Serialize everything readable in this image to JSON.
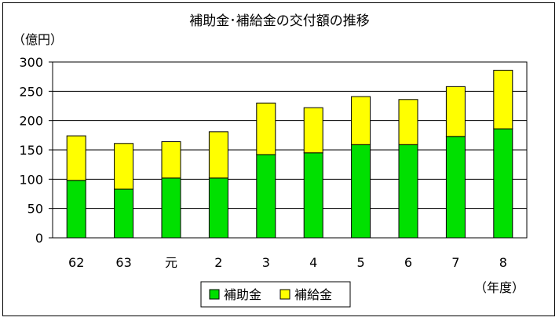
{
  "chart_data": {
    "type": "bar",
    "stacked": true,
    "title": "補助金･補給金の交付額の推移",
    "ylabel": "（億円）",
    "xlabel": "（年度）",
    "categories": [
      "62",
      "63",
      "元",
      "2",
      "3",
      "4",
      "5",
      "6",
      "7",
      "8"
    ],
    "series": [
      {
        "name": "補助金",
        "color": "#00e000",
        "values": [
          98,
          83,
          102,
          102,
          142,
          145,
          159,
          159,
          173,
          186
        ]
      },
      {
        "name": "補給金",
        "color": "#ffff00",
        "values": [
          76,
          78,
          62,
          79,
          88,
          77,
          82,
          77,
          85,
          100
        ]
      }
    ],
    "ylim": [
      0,
      300
    ],
    "yticks": [
      0,
      50,
      100,
      150,
      200,
      250,
      300
    ],
    "grid": true,
    "legend_position": "bottom"
  }
}
